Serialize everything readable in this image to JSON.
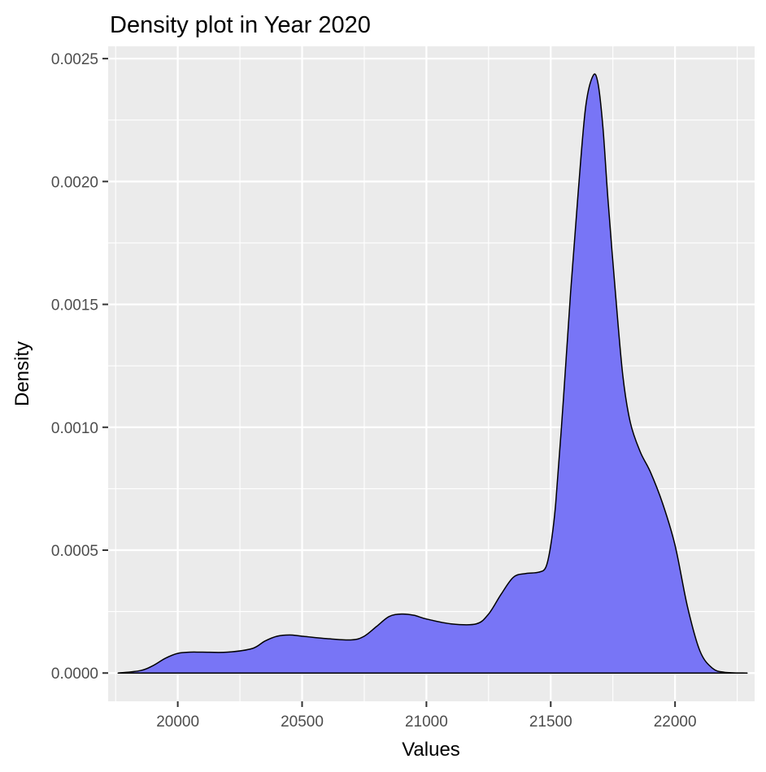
{
  "chart_data": {
    "type": "area",
    "title": "Density plot in Year 2020",
    "xlabel": "Values",
    "ylabel": "Density",
    "xlim": [
      19720,
      22320
    ],
    "ylim": [
      -0.000115,
      0.00255
    ],
    "x_ticks": [
      20000,
      20500,
      21000,
      21500,
      22000
    ],
    "x_tick_labels": [
      "20000",
      "20500",
      "21000",
      "21500",
      "22000"
    ],
    "y_ticks": [
      0,
      0.0005,
      0.001,
      0.0015,
      0.002,
      0.0025
    ],
    "y_tick_labels": [
      "0.0000",
      "0.0005",
      "0.0010",
      "0.0015",
      "0.0020",
      "0.0025"
    ],
    "grid": true,
    "legend": "none",
    "colors": {
      "panel_background": "#ebebeb",
      "grid": "#ffffff",
      "fill": "#7875f6",
      "outline": "#000000",
      "tick_mark": "#333333"
    },
    "series": [
      {
        "x": [
          19760,
          19850,
          19900,
          19950,
          20000,
          20050,
          20100,
          20200,
          20300,
          20350,
          20400,
          20450,
          20500,
          20600,
          20700,
          20750,
          20800,
          20850,
          20900,
          20950,
          21000,
          21100,
          21200,
          21250,
          21300,
          21350,
          21400,
          21450,
          21480,
          21500,
          21520,
          21550,
          21580,
          21610,
          21640,
          21670,
          21690,
          21710,
          21730,
          21760,
          21790,
          21820,
          21860,
          21900,
          21950,
          22000,
          22050,
          22100,
          22150,
          22200,
          22290
        ],
        "y": [
          0.0,
          1e-05,
          3e-05,
          6e-05,
          8e-05,
          8.5e-05,
          8.5e-05,
          8.5e-05,
          0.0001,
          0.00013,
          0.00015,
          0.000155,
          0.00015,
          0.00014,
          0.000135,
          0.00015,
          0.00019,
          0.00023,
          0.00024,
          0.000235,
          0.00022,
          0.0002,
          0.0002,
          0.00024,
          0.00032,
          0.00039,
          0.000405,
          0.00041,
          0.00043,
          0.00052,
          0.00069,
          0.0011,
          0.00155,
          0.00195,
          0.0023,
          0.00243,
          0.0024,
          0.00222,
          0.00193,
          0.00155,
          0.00121,
          0.00102,
          0.0009,
          0.00082,
          0.00069,
          0.00052,
          0.00027,
          9e-05,
          2e-05,
          3e-06,
          0.0
        ]
      }
    ]
  }
}
